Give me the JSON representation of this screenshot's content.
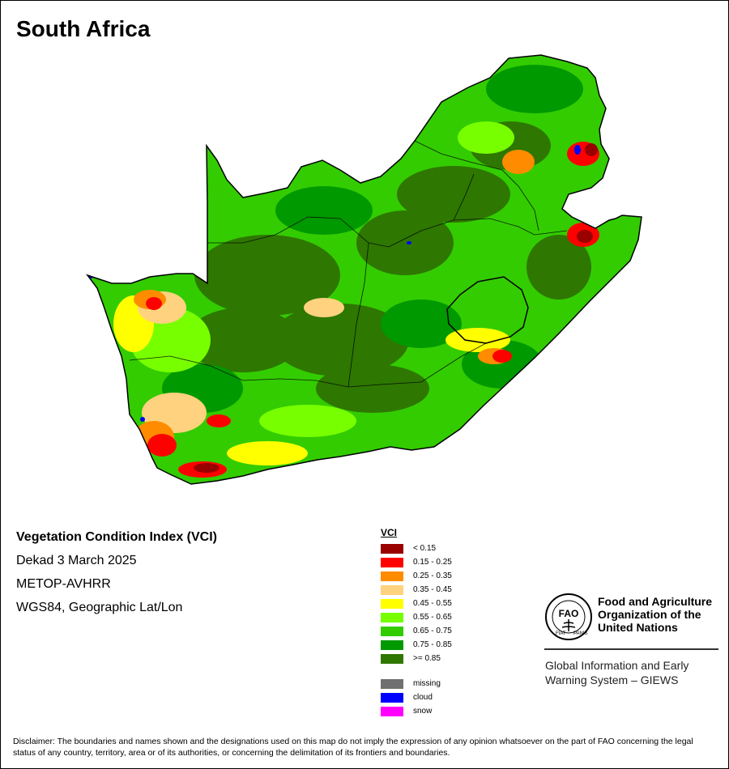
{
  "map": {
    "title": "South Africa",
    "subtitle_lines": [
      "Vegetation Condition Index (VCI)",
      "Dekad 3 March 2025",
      "METOP-AVHRR",
      "WGS84, Geographic Lat/Lon"
    ]
  },
  "legend": {
    "title": "VCI",
    "classes": [
      {
        "label": "< 0.15",
        "color": "#990000"
      },
      {
        "label": "0.15 - 0.25",
        "color": "#ff0000"
      },
      {
        "label": "0.25 - 0.35",
        "color": "#ff8c00"
      },
      {
        "label": "0.35 - 0.45",
        "color": "#ffd27f"
      },
      {
        "label": "0.45 - 0.55",
        "color": "#ffff00"
      },
      {
        "label": "0.55 - 0.65",
        "color": "#77ff00"
      },
      {
        "label": "0.65 - 0.75",
        "color": "#33cc00"
      },
      {
        "label": "0.75 - 0.85",
        "color": "#009900"
      },
      {
        "label": ">= 0.85",
        "color": "#2e7700"
      }
    ],
    "special": [
      {
        "label": "missing",
        "color": "#707070"
      },
      {
        "label": "cloud",
        "color": "#0000ff"
      },
      {
        "label": "snow",
        "color": "#ff00ff"
      }
    ]
  },
  "organization": {
    "logo_icon": "fao-emblem-icon",
    "logo_text": "FIAT PANIS",
    "name_lines": [
      "Food and Agriculture",
      "Organization of the",
      "United Nations"
    ],
    "program_lines": [
      "Global Information and Early",
      "Warning System – GIEWS"
    ]
  },
  "disclaimer": "Disclaimer: The boundaries and names shown and the designations used on this map do not imply the expression of any opinion whatsoever on the part of FAO concerning the legal status of any country, territory, area or of its authorities, or concerning the delimitation of its frontiers and boundaries."
}
